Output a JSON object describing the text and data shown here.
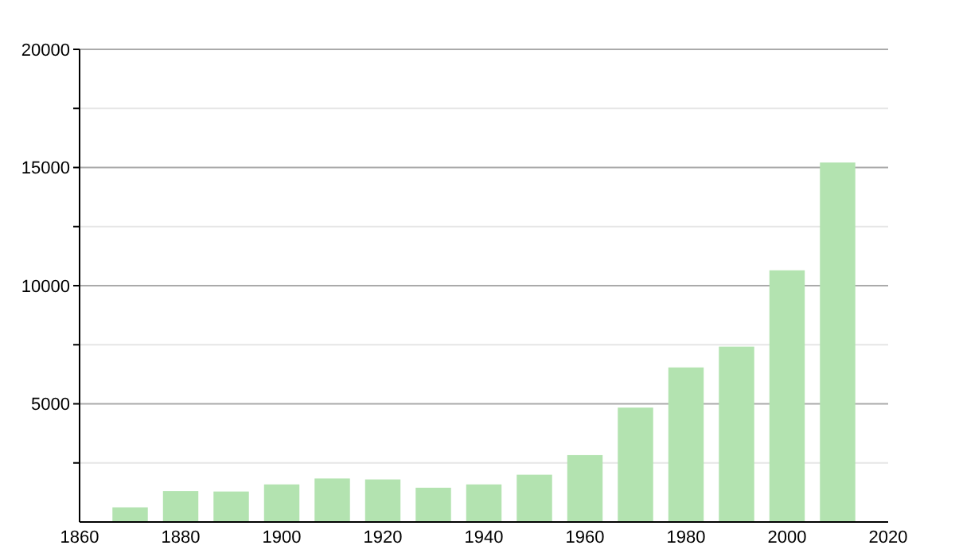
{
  "chart_data": {
    "type": "bar",
    "x": [
      1870,
      1880,
      1890,
      1900,
      1910,
      1920,
      1930,
      1940,
      1950,
      1960,
      1970,
      1980,
      1990,
      2000,
      2010
    ],
    "values": [
      620,
      1310,
      1290,
      1590,
      1840,
      1800,
      1450,
      1590,
      2000,
      2830,
      4840,
      6540,
      7420,
      10650,
      15210
    ],
    "color": "#b3e3b0",
    "xlim": [
      1860,
      2020
    ],
    "xticks": [
      1860,
      1880,
      1900,
      1920,
      1940,
      1960,
      1980,
      2000,
      2020
    ],
    "ylim": [
      0,
      20000
    ],
    "yticks": [
      {
        "value": 2500,
        "label": null
      },
      5000,
      {
        "value": 7500,
        "label": null
      },
      10000,
      {
        "value": 12500,
        "label": null
      },
      15000,
      {
        "value": 17500,
        "label": null
      },
      20000
    ],
    "grid": "y"
  }
}
